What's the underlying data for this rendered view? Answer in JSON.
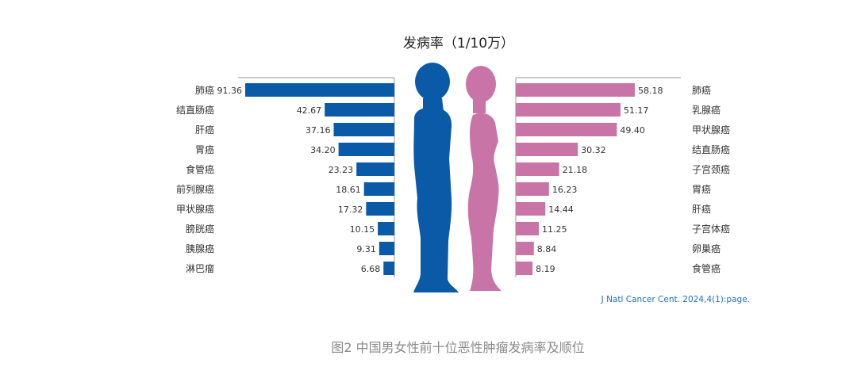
{
  "chart_data": {
    "type": "bar",
    "title": "发病率（1/10万）",
    "series": [
      {
        "name": "男性",
        "color": "#0a5aa8",
        "categories": [
          "肺癌",
          "结直肠癌",
          "肝癌",
          "胃癌",
          "食管癌",
          "前列腺癌",
          "甲状腺癌",
          "膀胱癌",
          "胰腺癌",
          "淋巴瘤"
        ],
        "values": [
          91.36,
          42.67,
          37.16,
          34.2,
          23.23,
          18.61,
          17.32,
          10.15,
          9.31,
          6.68
        ],
        "value_labels": [
          "91.36",
          "42.67",
          "37.16",
          "34.20",
          "23.23",
          "18.61",
          "17.32",
          "10.15",
          "9.31",
          "6.68"
        ]
      },
      {
        "name": "女性",
        "color": "#c874a7",
        "categories": [
          "肺癌",
          "乳腺癌",
          "甲状腺癌",
          "结直肠癌",
          "子宫颈癌",
          "胃癌",
          "肝癌",
          "子宫体癌",
          "卵巢癌",
          "食管癌"
        ],
        "values": [
          58.18,
          51.17,
          49.4,
          30.32,
          21.18,
          16.23,
          14.44,
          11.25,
          8.84,
          8.19
        ],
        "value_labels": [
          "58.18",
          "51.17",
          "49.40",
          "30.32",
          "21.18",
          "16.23",
          "14.44",
          "11.25",
          "8.84",
          "8.19"
        ]
      }
    ]
  },
  "source": "J Natl Cancer Cent. 2024,4(1):page.",
  "caption": "图2  中国男女性前十位恶性肿瘤发病率及顺位",
  "icons": {
    "male": "male-silhouette-icon",
    "female": "female-silhouette-icon"
  }
}
